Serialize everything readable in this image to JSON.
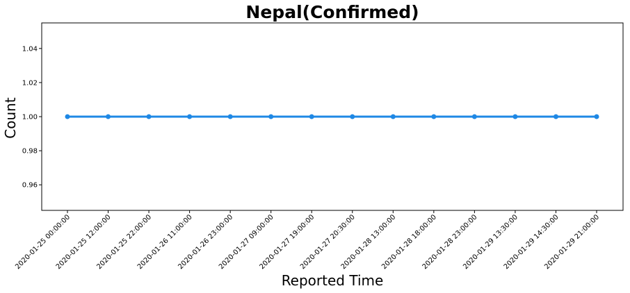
{
  "chart_data": {
    "type": "line",
    "title": "Nepal(Confirmed)",
    "xlabel": "Reported Time",
    "ylabel": "Count",
    "categories": [
      "2020-01-25 00:00:00",
      "2020-01-25 12:00:00",
      "2020-01-25 22:00:00",
      "2020-01-26 11:00:00",
      "2020-01-26 23:00:00",
      "2020-01-27 09:00:00",
      "2020-01-27 19:00:00",
      "2020-01-27 20:30:00",
      "2020-01-28 13:00:00",
      "2020-01-28 18:00:00",
      "2020-01-28 23:00:00",
      "2020-01-29 13:30:00",
      "2020-01-29 14:30:00",
      "2020-01-29 21:00:00"
    ],
    "series": [
      {
        "name": "Confirmed",
        "values": [
          1,
          1,
          1,
          1,
          1,
          1,
          1,
          1,
          1,
          1,
          1,
          1,
          1,
          1
        ],
        "color": "#1e88e5"
      }
    ],
    "yticks": [
      "0.96",
      "0.98",
      "1.00",
      "1.02",
      "1.04"
    ],
    "ylim": [
      0.945,
      1.055
    ],
    "grid": false,
    "legend": "none"
  }
}
